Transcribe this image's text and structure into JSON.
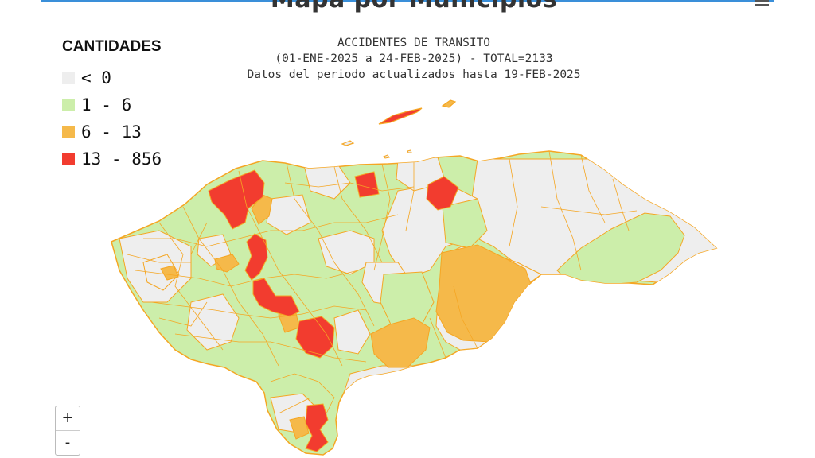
{
  "header": {
    "title": "Mapa por Municipios",
    "menu_icon": "hamburger-menu-icon"
  },
  "subtitle": {
    "line1": "ACCIDENTES DE TRANSITO",
    "line2": "(01-ENE-2025 a 24-FEB-2025) - TOTAL=2133",
    "line3": "Datos del periodo actualizados hasta 19-FEB-2025"
  },
  "legend": {
    "title": "CANTIDADES",
    "items": [
      {
        "label": "< 0",
        "color": "#eeeeee"
      },
      {
        "label": "1 - 6",
        "color": "#cceeaa"
      },
      {
        "label": "6 - 13",
        "color": "#f5b94a"
      },
      {
        "label": "13 - 856",
        "color": "#f23c2f"
      }
    ]
  },
  "map": {
    "border_color": "#f5a623"
  },
  "zoom": {
    "in_label": "+",
    "out_label": "-"
  },
  "credits": {
    "text": ""
  }
}
